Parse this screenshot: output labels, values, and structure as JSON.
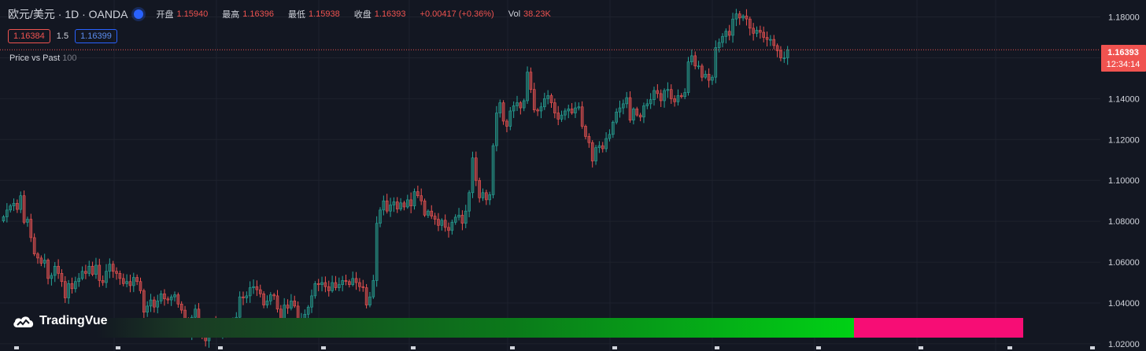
{
  "header": {
    "symbol": "欧元/美元 · 1D · OANDA",
    "open_label": "开盘",
    "open_value": "1.15940",
    "high_label": "最高",
    "high_value": "1.16396",
    "low_label": "最低",
    "low_value": "1.15938",
    "close_label": "收盘",
    "close_value": "1.16393",
    "change": "+0.00417 (+0.36%)",
    "vol_label": "Vol",
    "vol_value": "38.23K"
  },
  "quote": {
    "bid": "1.16384",
    "spread": "1.5",
    "ask": "1.16399"
  },
  "indicator": {
    "name": "Price vs Past",
    "period": "100"
  },
  "brand": "TradingVue",
  "colors": {
    "background": "#131722",
    "up": "#26a69a",
    "down": "#ef5350",
    "up_body": "#1f5f5a",
    "down_body": "#8c3a3f",
    "grid": "#1e222d",
    "axis_text": "#d1d4dc",
    "price_label_bg": "#f05350",
    "bar_pink": "#f70d75",
    "bar_green": "#00d115"
  },
  "chart_data": {
    "type": "candlestick",
    "symbol": "EURUSD",
    "timeframe": "1D",
    "y_axis": {
      "ticks": [
        "1.02000",
        "1.04000",
        "1.06000",
        "1.08000",
        "1.10000",
        "1.12000",
        "1.14000",
        "1.16000",
        "1.18000"
      ],
      "ylim": [
        1.0165,
        1.1883
      ]
    },
    "last_price": {
      "value": "1.16393",
      "countdown": "12:34:14"
    },
    "closes": [
      1.0822,
      1.0855,
      1.0875,
      1.0888,
      1.0858,
      1.0925,
      1.0795,
      1.081,
      1.072,
      1.064,
      1.062,
      1.0595,
      1.061,
      1.052,
      1.0535,
      1.058,
      1.0545,
      1.0505,
      1.0425,
      1.0495,
      1.047,
      1.0505,
      1.052,
      1.0555,
      1.0545,
      1.058,
      1.054,
      1.0585,
      1.051,
      1.05,
      1.0555,
      1.059,
      1.0555,
      1.0545,
      1.052,
      1.0495,
      1.0505,
      1.0485,
      1.0525,
      1.0505,
      1.046,
      1.0355,
      1.0385,
      1.0415,
      1.038,
      1.041,
      1.0445,
      1.042,
      1.0415,
      1.043,
      1.044,
      1.0395,
      1.0365,
      1.0305,
      1.024,
      1.033,
      1.037,
      1.028,
      1.025,
      1.0215,
      1.029,
      1.0305,
      1.0275,
      1.026,
      1.031,
      1.0265,
      1.029,
      1.03,
      1.033,
      1.043,
      1.0425,
      1.0435,
      1.0475,
      1.048,
      1.0465,
      1.0445,
      1.039,
      1.041,
      1.044,
      1.0435,
      1.037,
      1.028,
      1.039,
      1.0375,
      1.041,
      1.0385,
      1.0295,
      1.0325,
      1.0345,
      1.038,
      1.0435,
      1.0495,
      1.049,
      1.05,
      1.048,
      1.046,
      1.05,
      1.0475,
      1.049,
      1.051,
      1.0505,
      1.049,
      1.052,
      1.05,
      1.048,
      1.0475,
      1.039,
      1.043,
      1.051,
      1.079,
      1.0855,
      1.09,
      1.085,
      1.088,
      1.0895,
      1.086,
      1.089,
      1.087,
      1.0905,
      1.0875,
      1.0945,
      1.0925,
      1.09,
      1.083,
      1.085,
      1.0825,
      1.081,
      1.078,
      1.0805,
      1.077,
      1.0755,
      1.0795,
      1.082,
      1.083,
      1.079,
      1.085,
      1.094,
      1.111,
      1.1,
      1.0915,
      1.094,
      1.0905,
      1.093,
      1.117,
      1.133,
      1.138,
      1.129,
      1.1265,
      1.134,
      1.1365,
      1.138,
      1.1355,
      1.139,
      1.153,
      1.1445,
      1.1345,
      1.134,
      1.136,
      1.14,
      1.1415,
      1.138,
      1.133,
      1.13,
      1.132,
      1.134,
      1.135,
      1.133,
      1.1355,
      1.136,
      1.1265,
      1.1215,
      1.1185,
      1.1095,
      1.116,
      1.117,
      1.1155,
      1.1205,
      1.1225,
      1.1285,
      1.1335,
      1.1355,
      1.1375,
      1.1405,
      1.1295,
      1.135,
      1.132,
      1.131,
      1.1365,
      1.1375,
      1.1395,
      1.144,
      1.1425,
      1.139,
      1.144,
      1.1445,
      1.14,
      1.1385,
      1.1415,
      1.141,
      1.143,
      1.158,
      1.161,
      1.156,
      1.156,
      1.1505,
      1.152,
      1.149,
      1.1505,
      1.165,
      1.1675,
      1.1705,
      1.173,
      1.171,
      1.179,
      1.1815,
      1.1795,
      1.1805,
      1.179,
      1.1745,
      1.172,
      1.1735,
      1.1725,
      1.17,
      1.169,
      1.169,
      1.166,
      1.1635,
      1.16,
      1.16,
      1.1639
    ]
  }
}
